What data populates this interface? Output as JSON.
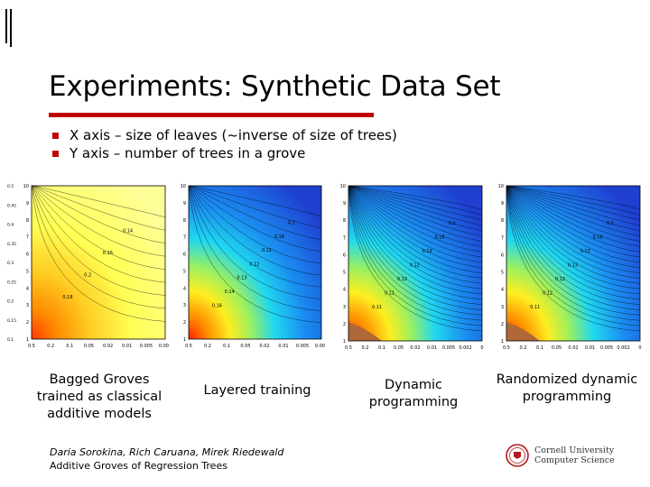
{
  "slide": {
    "title": "Experiments: Synthetic Data Set",
    "accent_color": "#c00000",
    "bullets": [
      "X axis – size of leaves (~inverse of size of trees)",
      "Y axis – number of trees in a grove"
    ]
  },
  "plots": [
    {
      "caption": "Bagged Groves trained as classical additive models",
      "y_ticks": [
        "10",
        "9",
        "8",
        "7",
        "6",
        "5",
        "4",
        "3",
        "2",
        "1"
      ],
      "x_ticks": [
        "0.5",
        "0.2",
        "0.1",
        "0.05",
        "0.02",
        "0.01",
        "0.005",
        "0.002"
      ],
      "colorbar_ticks": [
        "0.5",
        "0.45",
        "0.4",
        "0.35",
        "0.3",
        "0.25",
        "0.2",
        "0.15",
        "0.1"
      ],
      "contour_labels": [
        "0.18",
        "0.2",
        "0.16",
        "0.14"
      ]
    },
    {
      "caption": "Layered training",
      "y_ticks": [
        "10",
        "9",
        "8",
        "7",
        "6",
        "5",
        "4",
        "3",
        "2",
        "1"
      ],
      "x_ticks": [
        "0.5",
        "0.2",
        "0.1",
        "0.05",
        "0.02",
        "0.01",
        "0.005",
        "0.002"
      ],
      "contour_labels": [
        "0.16",
        "0.14",
        "0.13",
        "0.12",
        "0.11",
        "0.16",
        "0.2"
      ]
    },
    {
      "caption": "Dynamic programming",
      "y_ticks": [
        "10",
        "9",
        "8",
        "7",
        "6",
        "5",
        "4",
        "3",
        "2",
        "1"
      ],
      "x_ticks": [
        "0.5",
        "0.2",
        "0.1",
        "0.05",
        "0.02",
        "0.01",
        "0.005",
        "0.002",
        "0"
      ],
      "contour_labels": [
        "0.11",
        "0.11",
        "0.12",
        "0.12",
        "0.13",
        "0.16",
        "0.2"
      ]
    },
    {
      "caption": "Randomized dynamic programming",
      "y_ticks": [
        "10",
        "9",
        "8",
        "7",
        "6",
        "5",
        "4",
        "3",
        "2",
        "1"
      ],
      "x_ticks": [
        "0.5",
        "0.2",
        "0.1",
        "0.05",
        "0.02",
        "0.01",
        "0.005",
        "0.002",
        "0"
      ],
      "contour_labels": [
        "0.11",
        "0.12",
        "0.12",
        "0.13",
        "0.13",
        "0.16",
        "0.2"
      ]
    }
  ],
  "footer": {
    "authors": "Daria Sorokina, Rich Caruana, Mirek Riedewald",
    "subtitle": "Additive Groves of Regression Trees",
    "logo_line1": "Cornell University",
    "logo_line2": "Computer Science",
    "logo_color": "#b31b1b"
  }
}
